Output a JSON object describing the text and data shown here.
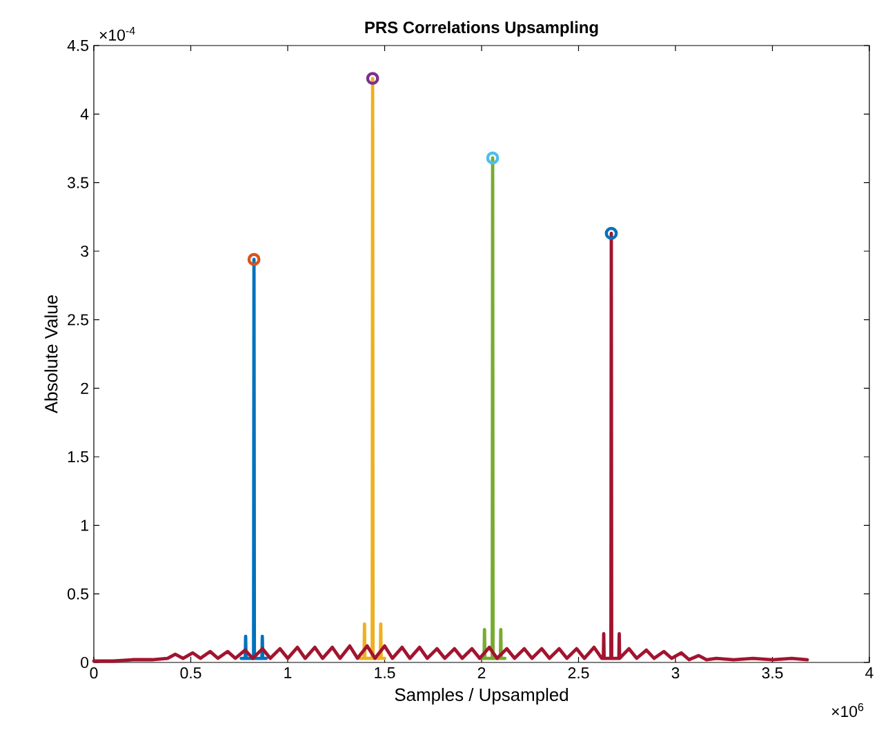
{
  "chart_data": {
    "type": "line",
    "title": "PRS Correlations Upsampling",
    "xlabel": "Samples / Upsampled",
    "ylabel": "Absolute Value",
    "annotations": [
      "×10$^{-4}$",
      "×10$^{6}$"
    ],
    "xlim": [
      0,
      4
    ],
    "ylim": [
      0,
      4.5
    ],
    "xticks": [
      0,
      0.5,
      1,
      1.5,
      2,
      2.5,
      3,
      3.5,
      4
    ],
    "yticks": [
      0,
      0.5,
      1,
      1.5,
      2,
      2.5,
      3,
      3.5,
      4,
      4.5
    ],
    "grid": false,
    "series": [
      {
        "color": "#0072bd",
        "x": [
          0.76,
          0.781,
          0.783,
          0.785,
          0.824,
          0.826,
          0.828,
          0.867,
          0.869,
          0.871,
          0.89
        ],
        "values": [
          0.03,
          0.03,
          0.19,
          0.03,
          0.03,
          2.94,
          0.03,
          0.03,
          0.19,
          0.03,
          0.03
        ]
      },
      {
        "color": "#edb120",
        "x": [
          1.37,
          1.394,
          1.396,
          1.398,
          1.436,
          1.438,
          1.44,
          1.478,
          1.48,
          1.482,
          1.5
        ],
        "values": [
          0.03,
          0.03,
          0.28,
          0.03,
          0.03,
          4.26,
          0.03,
          0.03,
          0.28,
          0.03,
          0.03
        ]
      },
      {
        "color": "#77ac30",
        "x": [
          1.99,
          2.013,
          2.015,
          2.017,
          2.055,
          2.057,
          2.059,
          2.097,
          2.099,
          2.101,
          2.12
        ],
        "values": [
          0.03,
          0.03,
          0.24,
          0.03,
          0.03,
          3.68,
          0.03,
          0.03,
          0.24,
          0.03,
          0.03
        ]
      },
      {
        "color": "#a2142f",
        "x": [
          0,
          0.1,
          0.2,
          0.3,
          0.38,
          0.42,
          0.46,
          0.51,
          0.55,
          0.6,
          0.64,
          0.69,
          0.73,
          0.78,
          0.82,
          0.87,
          0.91,
          0.96,
          1.0,
          1.05,
          1.09,
          1.14,
          1.18,
          1.23,
          1.27,
          1.32,
          1.36,
          1.41,
          1.45,
          1.5,
          1.54,
          1.59,
          1.63,
          1.68,
          1.72,
          1.77,
          1.81,
          1.86,
          1.9,
          1.95,
          1.99,
          2.04,
          2.08,
          2.13,
          2.17,
          2.22,
          2.26,
          2.31,
          2.35,
          2.4,
          2.44,
          2.49,
          2.53,
          2.58,
          2.62,
          2.628,
          2.63,
          2.632,
          2.667,
          2.669,
          2.671,
          2.708,
          2.71,
          2.712,
          2.76,
          2.8,
          2.85,
          2.89,
          2.94,
          2.98,
          3.03,
          3.07,
          3.12,
          3.16,
          3.21,
          3.3,
          3.4,
          3.5,
          3.6,
          3.68
        ],
        "values": [
          0.01,
          0.01,
          0.02,
          0.02,
          0.03,
          0.06,
          0.03,
          0.07,
          0.03,
          0.08,
          0.03,
          0.08,
          0.03,
          0.09,
          0.03,
          0.1,
          0.03,
          0.1,
          0.03,
          0.11,
          0.03,
          0.11,
          0.03,
          0.11,
          0.03,
          0.12,
          0.03,
          0.12,
          0.03,
          0.12,
          0.03,
          0.11,
          0.03,
          0.11,
          0.03,
          0.1,
          0.03,
          0.1,
          0.03,
          0.1,
          0.03,
          0.11,
          0.03,
          0.1,
          0.03,
          0.1,
          0.03,
          0.1,
          0.03,
          0.1,
          0.03,
          0.1,
          0.03,
          0.11,
          0.03,
          0.03,
          0.21,
          0.03,
          0.03,
          3.13,
          0.03,
          0.03,
          0.21,
          0.03,
          0.1,
          0.03,
          0.09,
          0.03,
          0.08,
          0.03,
          0.07,
          0.02,
          0.05,
          0.02,
          0.03,
          0.02,
          0.03,
          0.02,
          0.03,
          0.02
        ]
      },
      {
        "type": "scatter",
        "marker": "circle",
        "x": [
          0.826,
          1.438,
          2.057,
          2.669
        ],
        "values": [
          2.94,
          4.26,
          3.68,
          3.13
        ],
        "colors": [
          "#d95319",
          "#7e2f8e",
          "#4dbeee",
          "#0072bd"
        ]
      }
    ]
  }
}
